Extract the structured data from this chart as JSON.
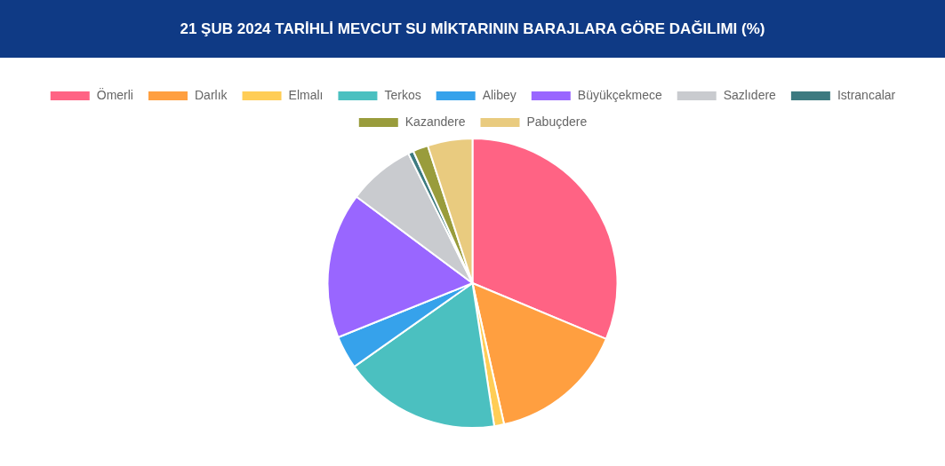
{
  "chart_data": {
    "type": "pie",
    "title": "21 ŞUB 2024 TARİHLİ MEVCUT SU MİKTARININ BARAJLARA GÖRE DAĞILIMI (%)",
    "categories": [
      "Ömerli",
      "Darlık",
      "Elmalı",
      "Terkos",
      "Alibey",
      "Büyükçekmece",
      "Sazlıdere",
      "Istrancalar",
      "Kazandere",
      "Pabuçdere"
    ],
    "values": [
      31.3,
      15.2,
      1.1,
      17.6,
      3.7,
      16.3,
      7.5,
      0.6,
      1.7,
      5.0
    ],
    "colors": [
      "#ff6384",
      "#ff9f40",
      "#ffcd56",
      "#4bc0c0",
      "#36a2eb",
      "#9966ff",
      "#c9cbcf",
      "#3d7a80",
      "#999c3c",
      "#e9cb7f"
    ],
    "legend": "top"
  }
}
